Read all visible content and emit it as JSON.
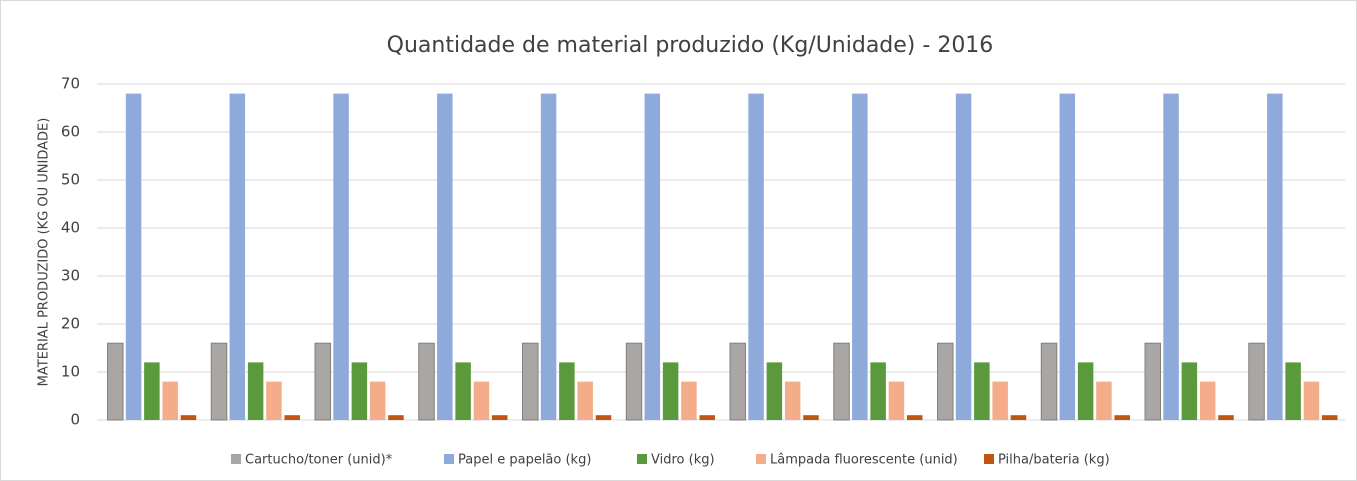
{
  "chart_data": {
    "type": "bar",
    "title": "Quantidade de material produzido (Kg/Unidade) - 2016",
    "y_label": "MATERIAL PRODUZIDO (KG OU UNIDADE)",
    "categories": [
      null,
      null,
      null,
      null,
      null,
      null,
      null,
      null,
      null,
      null,
      null,
      null
    ],
    "series": [
      {
        "name": "Cartucho/toner (unid)*",
        "color": "#aaa6a3",
        "values": [
          16,
          16,
          16,
          16,
          16,
          16,
          16,
          16,
          16,
          16,
          16,
          16
        ]
      },
      {
        "name": "Papel e papelão (kg)",
        "color": "#8eaadb",
        "values": [
          68,
          68,
          68,
          68,
          68,
          68,
          68,
          68,
          68,
          68,
          68,
          68
        ]
      },
      {
        "name": "Vidro (kg)",
        "color": "#5b9a3c",
        "values": [
          12,
          12,
          12,
          12,
          12,
          12,
          12,
          12,
          12,
          12,
          12,
          12
        ]
      },
      {
        "name": "Lâmpada fluorescente (unid)",
        "color": "#f4ac8a",
        "values": [
          8,
          8,
          8,
          8,
          8,
          8,
          8,
          8,
          8,
          8,
          8,
          8
        ]
      },
      {
        "name": "Pilha/bateria (kg)",
        "color": "#c0550f",
        "values": [
          1,
          1,
          1,
          1,
          1,
          1,
          1,
          1,
          1,
          1,
          1,
          1
        ]
      }
    ],
    "ylim": [
      0,
      70
    ],
    "yticks": [
      0,
      10,
      20,
      30,
      40,
      50,
      60,
      70
    ],
    "grid": true,
    "legend": "bottom"
  }
}
